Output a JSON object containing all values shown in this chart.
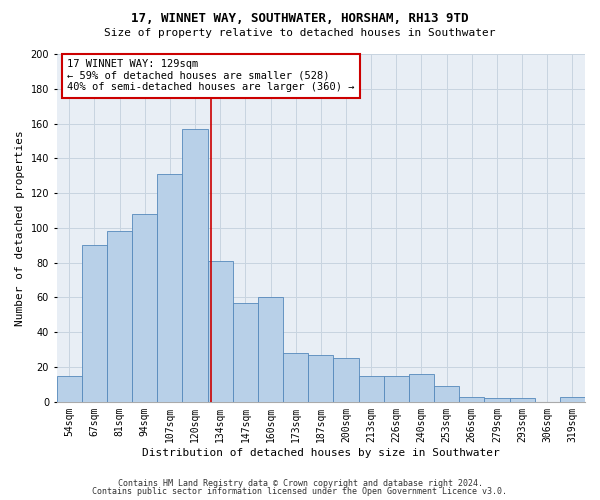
{
  "title1": "17, WINNET WAY, SOUTHWATER, HORSHAM, RH13 9TD",
  "title2": "Size of property relative to detached houses in Southwater",
  "xlabel": "Distribution of detached houses by size in Southwater",
  "ylabel": "Number of detached properties",
  "categories": [
    "54sqm",
    "67sqm",
    "81sqm",
    "94sqm",
    "107sqm",
    "120sqm",
    "134sqm",
    "147sqm",
    "160sqm",
    "173sqm",
    "187sqm",
    "200sqm",
    "213sqm",
    "226sqm",
    "240sqm",
    "253sqm",
    "266sqm",
    "279sqm",
    "293sqm",
    "306sqm",
    "319sqm"
  ],
  "values": [
    15,
    90,
    98,
    108,
    131,
    157,
    81,
    57,
    60,
    28,
    27,
    25,
    15,
    15,
    16,
    9,
    3,
    2,
    2,
    0,
    3
  ],
  "bar_color": "#b8d0e8",
  "bar_edge_color": "#5588bb",
  "property_line_color": "#cc0000",
  "annotation_line1": "17 WINNET WAY: 129sqm",
  "annotation_line2": "← 59% of detached houses are smaller (528)",
  "annotation_line3": "40% of semi-detached houses are larger (360) →",
  "annotation_box_color": "#cc0000",
  "ylim": [
    0,
    200
  ],
  "yticks": [
    0,
    20,
    40,
    60,
    80,
    100,
    120,
    140,
    160,
    180,
    200
  ],
  "grid_color": "#c8d4e0",
  "background_color": "#e8eef5",
  "footer1": "Contains HM Land Registry data © Crown copyright and database right 2024.",
  "footer2": "Contains public sector information licensed under the Open Government Licence v3.0.",
  "title1_fontsize": 9,
  "title2_fontsize": 8,
  "ylabel_fontsize": 8,
  "xlabel_fontsize": 8,
  "tick_fontsize": 7,
  "annotation_fontsize": 7.5,
  "footer_fontsize": 6
}
